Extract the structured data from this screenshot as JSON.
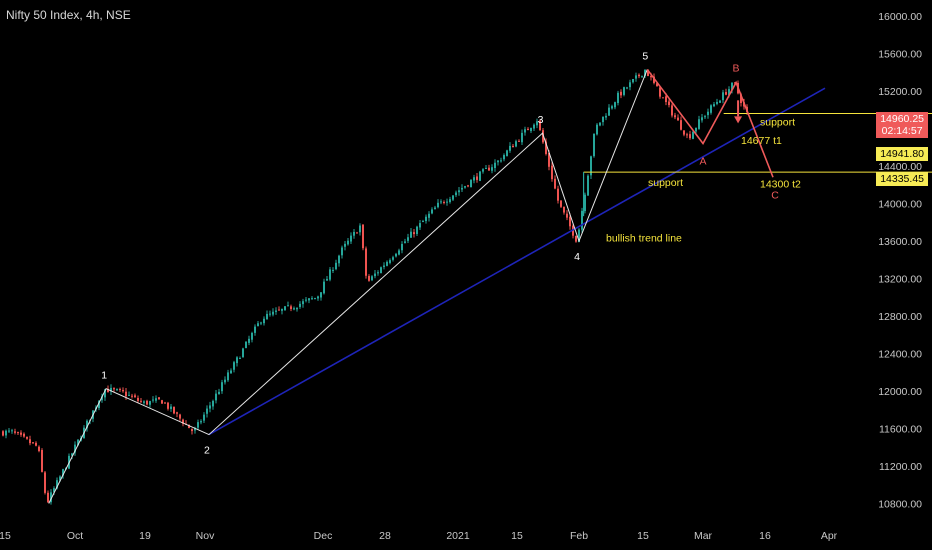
{
  "header": {
    "title": "Nifty 50 Index, 4h, NSE"
  },
  "price_labels": {
    "last": "14960.25",
    "countdown": "02:14:57",
    "level1": "14941.80",
    "level2": "14335.45"
  },
  "colors": {
    "background": "#000000",
    "up": "#26a69a",
    "down": "#ef5350",
    "trend_line": "#1e24b8",
    "wave_line": "#e6e6e6",
    "pattern_line": "#ef5a5a",
    "annotation": "#f5e43c",
    "axis_text": "#c8c8c8"
  },
  "chart_data": {
    "type": "line",
    "title": "Nifty 50 Index, 4h, NSE",
    "ylim": [
      10600,
      16350
    ],
    "y_ticks": [
      10800,
      11200,
      11600,
      12000,
      12400,
      12800,
      13200,
      13600,
      14000,
      14400,
      14800,
      15200,
      15600,
      16000
    ],
    "y_tick_labels": [
      "10800.00",
      "11200.00",
      "11600.00",
      "12000.00",
      "12400.00",
      "12800.00",
      "13200.00",
      "13600.00",
      "14000.00",
      "14400.00",
      "14800.00",
      "15200.00",
      "15600.00",
      "16000.00"
    ],
    "x_tick_labels": [
      "15",
      "Oct",
      "19",
      "Nov",
      "Dec",
      "28",
      "2021",
      "15",
      "Feb",
      "15",
      "Mar",
      "16",
      "Apr"
    ],
    "price_path": [
      {
        "date": "2020-09-17",
        "value": 11560
      },
      {
        "date": "2020-09-23",
        "value": 11400
      },
      {
        "date": "2020-09-25",
        "value": 10800
      },
      {
        "date": "2020-10-09",
        "value": 12020
      },
      {
        "date": "2020-10-14",
        "value": 11980
      },
      {
        "date": "2020-10-19",
        "value": 11870
      },
      {
        "date": "2020-10-23",
        "value": 11900
      },
      {
        "date": "2020-10-30",
        "value": 11560
      },
      {
        "date": "2020-11-16",
        "value": 12780
      },
      {
        "date": "2020-11-30",
        "value": 13000
      },
      {
        "date": "2020-12-10",
        "value": 13500
      },
      {
        "date": "2020-12-18",
        "value": 13760
      },
      {
        "date": "2020-12-21",
        "value": 13150
      },
      {
        "date": "2020-12-31",
        "value": 13980
      },
      {
        "date": "2021-01-11",
        "value": 14450
      },
      {
        "date": "2021-01-15",
        "value": 14650
      },
      {
        "date": "2021-01-21",
        "value": 14900
      },
      {
        "date": "2021-01-27",
        "value": 14000
      },
      {
        "date": "2021-02-01",
        "value": 13600
      },
      {
        "date": "2021-02-05",
        "value": 14800
      },
      {
        "date": "2021-02-10",
        "value": 15150
      },
      {
        "date": "2021-02-16",
        "value": 15430
      },
      {
        "date": "2021-02-19",
        "value": 15200
      },
      {
        "date": "2021-02-26",
        "value": 14700
      },
      {
        "date": "2021-03-01",
        "value": 14900
      },
      {
        "date": "2021-03-04",
        "value": 15050
      },
      {
        "date": "2021-03-09",
        "value": 15280
      },
      {
        "date": "2021-03-12",
        "value": 14960
      }
    ],
    "wave_points": [
      {
        "label": "1",
        "date": "2020-10-09",
        "value": 12025
      },
      {
        "label": "2",
        "date": "2020-11-02",
        "value": 11535
      },
      {
        "label": "3",
        "date": "2021-01-22",
        "value": 14750
      },
      {
        "label": "4",
        "date": "2021-02-01",
        "value": 13600
      },
      {
        "label": "5",
        "date": "2021-02-16",
        "value": 15430
      }
    ],
    "trend_line": {
      "label": "bullish trend line",
      "from": {
        "date": "2020-11-02",
        "value": 11535
      },
      "to": {
        "date": "2021-03-31",
        "value": 15230
      }
    },
    "pattern_points": [
      {
        "label": "",
        "date": "2021-02-16",
        "value": 15430
      },
      {
        "label": "A",
        "date": "2021-03-01",
        "value": 14640
      },
      {
        "label": "B",
        "date": "2021-03-09",
        "value": 15290
      },
      {
        "label": "C",
        "date": "2021-03-18",
        "value": 14280
      }
    ],
    "support_lines": [
      {
        "label": "support",
        "value": 14960,
        "from_date": "2021-03-06"
      },
      {
        "label": "support",
        "value": 14335,
        "from_date": "2021-02-02"
      }
    ],
    "targets": [
      {
        "label": "14677 t1",
        "value": 14677
      },
      {
        "label": "14300 t2",
        "value": 14300
      }
    ]
  }
}
